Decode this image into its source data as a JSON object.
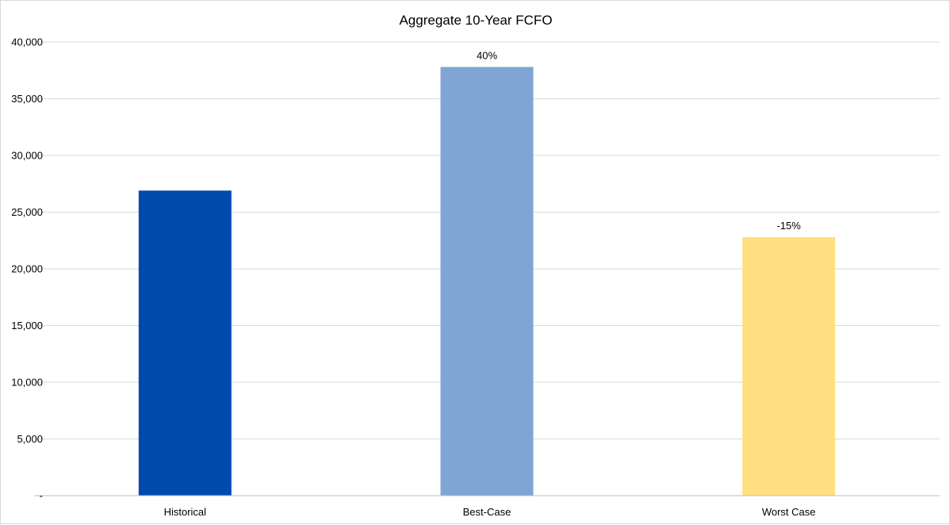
{
  "chart_data": {
    "type": "bar",
    "title": "Aggregate 10-Year FCFO",
    "xlabel": "",
    "ylabel": "",
    "categories": [
      "Historical",
      "Best-Case",
      "Worst Case"
    ],
    "values": [
      26900,
      37800,
      22800
    ],
    "bar_colors": [
      "#004AAD",
      "#80A5D4",
      "#FFDF80"
    ],
    "data_labels": [
      "",
      "40%",
      "-15%"
    ],
    "ylim": [
      0,
      40000
    ],
    "y_ticks": [
      0,
      5000,
      10000,
      15000,
      20000,
      25000,
      30000,
      35000,
      40000
    ],
    "y_tick_labels": [
      "-",
      "5,000",
      "10,000",
      "15,000",
      "20,000",
      "25,000",
      "30,000",
      "35,000",
      "40,000"
    ],
    "grid": true,
    "legend": "none"
  }
}
